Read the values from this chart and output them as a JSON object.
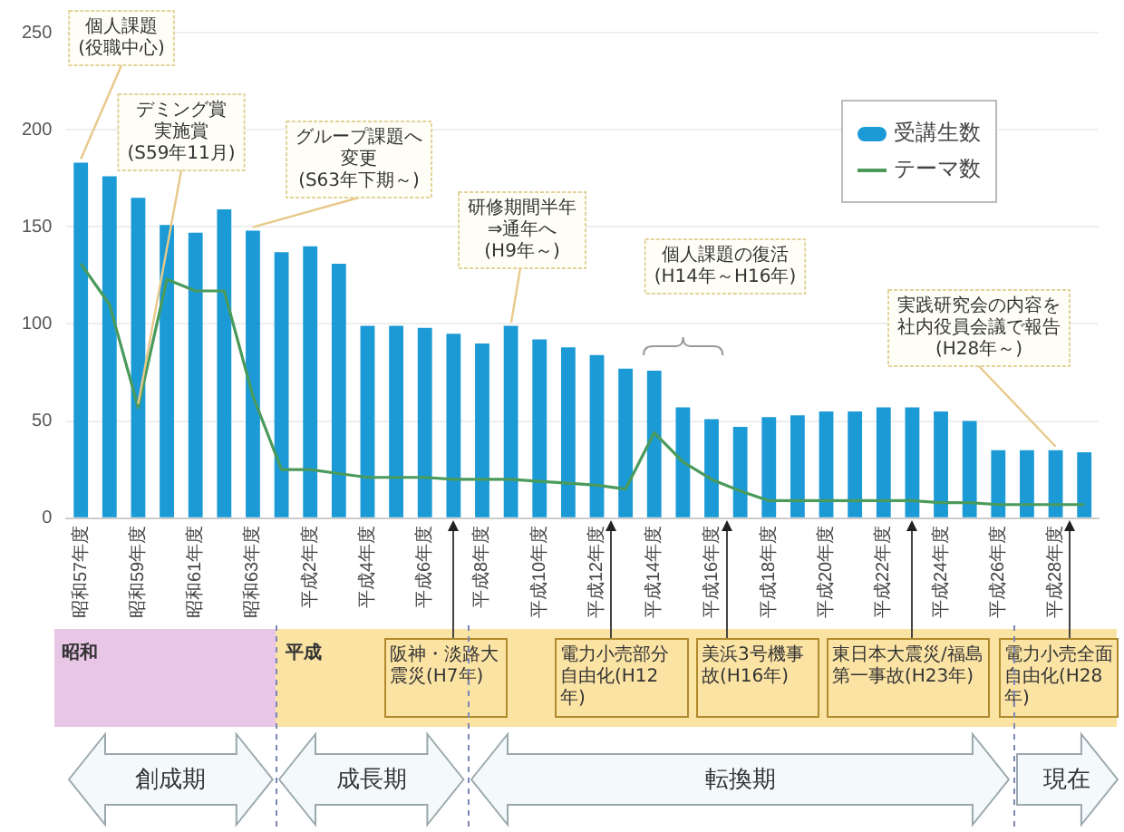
{
  "chart_data": {
    "type": "bar",
    "categories": [
      "昭和57年度",
      null,
      "昭和59年度",
      null,
      "昭和61年度",
      null,
      "昭和63年度",
      null,
      "平成2年度",
      null,
      "平成4年度",
      null,
      "平成6年度",
      null,
      "平成8年度",
      null,
      "平成10年度",
      null,
      "平成12年度",
      null,
      "平成14年度",
      null,
      "平成16年度",
      null,
      "平成18年度",
      null,
      "平成20年度",
      null,
      "平成22年度",
      null,
      "平成24年度",
      null,
      "平成26年度",
      null,
      "平成28年度",
      null
    ],
    "series": [
      {
        "name": "受講生数",
        "type": "bar",
        "color": "#1b9ad6",
        "values": [
          183,
          176,
          165,
          151,
          147,
          159,
          148,
          137,
          140,
          131,
          99,
          99,
          98,
          95,
          90,
          99,
          92,
          88,
          84,
          77,
          76,
          57,
          51,
          47,
          52,
          53,
          55,
          55,
          57,
          57,
          55,
          50,
          35,
          35,
          35,
          34
        ]
      },
      {
        "name": "テーマ数",
        "type": "line",
        "color": "#4a9a5c",
        "values": [
          131,
          110,
          57,
          123,
          117,
          117,
          63,
          25,
          25,
          23,
          21,
          21,
          21,
          20,
          20,
          20,
          19,
          18,
          17,
          15,
          44,
          29,
          20,
          14,
          9,
          9,
          9,
          9,
          9,
          9,
          8,
          8,
          7,
          7,
          7,
          7
        ]
      }
    ],
    "ylim": [
      0,
      250
    ],
    "yticks": [
      0,
      50,
      100,
      150,
      200,
      250
    ],
    "grid": "y",
    "legend": "top right",
    "marker": "none",
    "annotations": [
      {
        "text": "個人課題(役職中心)",
        "x": "昭和57年度",
        "y": 183
      },
      {
        "text": "デミング賞実施賞(S59年11月)",
        "x": "昭和59年度",
        "y": 57
      },
      {
        "text": "グループ課題へ変更(S63年下期～)",
        "x": "昭和63年度",
        "y": 148
      },
      "研修期間半年⇒通年へ(H9年～)",
      "個人課題の復活(H14年～H16年)",
      {
        "text": "実践研究会の内容を社内役員会議で報告(H28年～)",
        "x": "平成28年度",
        "y": 35
      },
      "昭和",
      "平成",
      "阪神・淡路大震災(H7年)",
      "電力小売部分自由化(H12年)",
      "美浜3号機事故(H16年)",
      "東日本大震災/福島第一事故(H23年)",
      "電力小売全面自由化(H28年)",
      "創成期",
      "成長期",
      "転換期",
      "現在"
    ]
  }
}
